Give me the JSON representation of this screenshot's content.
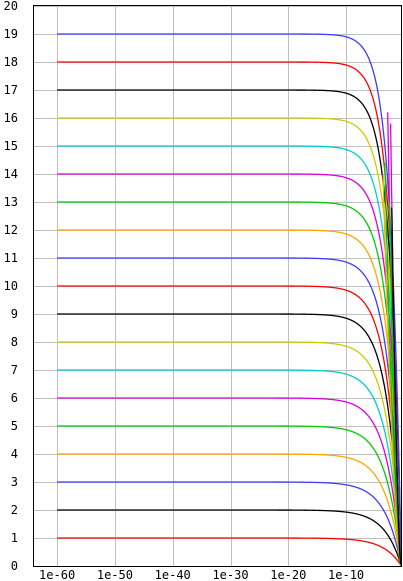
{
  "chart_data": {
    "type": "line",
    "title": "",
    "xlabel": "",
    "ylabel": "",
    "x_scale": "log",
    "xlim": [
      "1e-64",
      "1e-0.5"
    ],
    "ylim": [
      0,
      20
    ],
    "grid": true,
    "legend": "none",
    "x_ticks": [
      "1e-60",
      "1e-50",
      "1e-40",
      "1e-30",
      "1e-20",
      "1e-10"
    ],
    "y_ticks": [
      "0",
      "1",
      "2",
      "3",
      "4",
      "5",
      "6",
      "7",
      "8",
      "9",
      "10",
      "11",
      "12",
      "13",
      "14",
      "15",
      "16",
      "17",
      "18",
      "19",
      "20"
    ],
    "series": [
      {
        "plateau": 1,
        "color": "#ff0000",
        "x_start": "1e-60"
      },
      {
        "plateau": 2,
        "color": "#000000",
        "x_start": "1e-60"
      },
      {
        "plateau": 3,
        "color": "#3c3cff",
        "x_start": "1e-60"
      },
      {
        "plateau": 4,
        "color": "#ffa500",
        "x_start": "1e-60"
      },
      {
        "plateau": 5,
        "color": "#00cc00",
        "x_start": "1e-60"
      },
      {
        "plateau": 6,
        "color": "#dd00dd",
        "x_start": "1e-60"
      },
      {
        "plateau": 7,
        "color": "#00cccc",
        "x_start": "1e-60"
      },
      {
        "plateau": 8,
        "color": "#cccc00",
        "x_start": "1e-60"
      },
      {
        "plateau": 9,
        "color": "#000000",
        "x_start": "1e-60"
      },
      {
        "plateau": 10,
        "color": "#ff0000",
        "x_start": "1e-60"
      },
      {
        "plateau": 11,
        "color": "#3c3cff",
        "x_start": "1e-60"
      },
      {
        "plateau": 12,
        "color": "#ffa500",
        "x_start": "1e-60"
      },
      {
        "plateau": 13,
        "color": "#00cc00",
        "x_start": "1e-60"
      },
      {
        "plateau": 14,
        "color": "#dd00dd",
        "x_start": "1e-60"
      },
      {
        "plateau": 15,
        "color": "#00cccc",
        "x_start": "1e-60"
      },
      {
        "plateau": 16,
        "color": "#cccc00",
        "x_start": "1e-60"
      },
      {
        "plateau": 17,
        "color": "#000000",
        "x_start": "1e-60"
      },
      {
        "plateau": 18,
        "color": "#ff0000",
        "x_start": "1e-60"
      },
      {
        "plateau": 19,
        "color": "#3c3cff",
        "x_start": "1e-60"
      }
    ],
    "spikes": [
      {
        "color": "#dd00dd",
        "peak_y": 16.2,
        "x_peak": "1e-2.5"
      },
      {
        "color": "#dd00dd",
        "peak_y": 15.8,
        "x_peak": "1e-2.0"
      },
      {
        "color": "#00cc00",
        "peak_y": 14.4,
        "x_peak": "1e-3.0"
      },
      {
        "color": "#ffa500",
        "peak_y": 14.0,
        "x_peak": "1e-3.3"
      },
      {
        "color": "#00cc00",
        "peak_y": 13.0,
        "x_peak": "1e-2.2"
      },
      {
        "color": "#000000",
        "peak_y": 12.8,
        "x_peak": "1e-1.8"
      }
    ]
  }
}
